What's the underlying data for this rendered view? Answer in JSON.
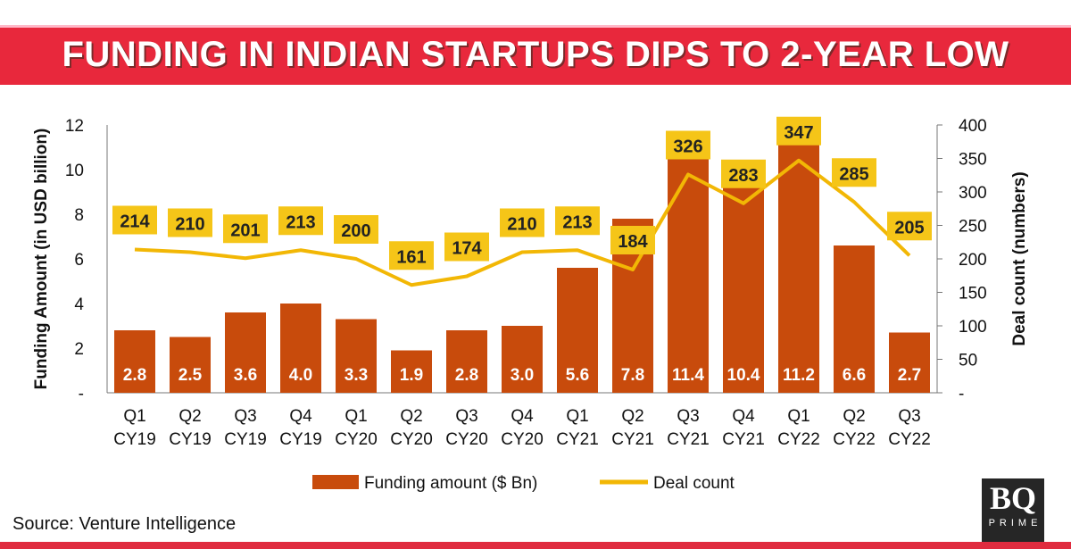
{
  "header": {
    "title": "FUNDING IN INDIAN STARTUPS DIPS TO 2-YEAR LOW"
  },
  "footer": {
    "source": "Source: Venture Intelligence",
    "logo_text": "BQ",
    "logo_subtext": "PRIME"
  },
  "colors": {
    "bar": "#c84b0c",
    "line": "#f2b705",
    "label_box": "#f5c518",
    "banner": "#e8283c"
  },
  "chart_data": {
    "type": "bar+line",
    "title": "FUNDING IN INDIAN STARTUPS DIPS TO 2-YEAR LOW",
    "categories": [
      [
        "Q1",
        "CY19"
      ],
      [
        "Q2",
        "CY19"
      ],
      [
        "Q3",
        "CY19"
      ],
      [
        "Q4",
        "CY19"
      ],
      [
        "Q1",
        "CY20"
      ],
      [
        "Q2",
        "CY20"
      ],
      [
        "Q3",
        "CY20"
      ],
      [
        "Q4",
        "CY20"
      ],
      [
        "Q1",
        "CY21"
      ],
      [
        "Q2",
        "CY21"
      ],
      [
        "Q3",
        "CY21"
      ],
      [
        "Q4",
        "CY21"
      ],
      [
        "Q1",
        "CY22"
      ],
      [
        "Q2",
        "CY22"
      ],
      [
        "Q3",
        "CY22"
      ]
    ],
    "series": [
      {
        "name": "Funding amount ($ Bn)",
        "type": "bar",
        "axis": "left",
        "values": [
          2.8,
          2.5,
          3.6,
          4.0,
          3.3,
          1.9,
          2.8,
          3.0,
          5.6,
          7.8,
          11.4,
          10.4,
          11.2,
          6.6,
          2.7
        ],
        "labels": [
          "2.8",
          "2.5",
          "3.6",
          "4.0",
          "3.3",
          "1.9",
          "2.8",
          "3.0",
          "5.6",
          "7.8",
          "11.4",
          "10.4",
          "11.2",
          "6.6",
          "2.7"
        ]
      },
      {
        "name": "Deal count",
        "type": "line",
        "axis": "right",
        "values": [
          214,
          210,
          201,
          213,
          200,
          161,
          174,
          210,
          213,
          184,
          326,
          283,
          347,
          285,
          205
        ],
        "labels": [
          "214",
          "210",
          "201",
          "213",
          "200",
          "161",
          "174",
          "210",
          "213",
          "184",
          "326",
          "283",
          "347",
          "285",
          "205"
        ]
      }
    ],
    "ylabel": "Funding Amount (in USD billion)",
    "ylabel_right": "Deal count (numbers)",
    "ylim": [
      0,
      12
    ],
    "ylim_right": [
      0,
      400
    ],
    "yticks": [
      "-",
      "2",
      "4",
      "6",
      "8",
      "10",
      "12"
    ],
    "yticks_right": [
      "-",
      "50",
      "100",
      "150",
      "200",
      "250",
      "300",
      "350",
      "400"
    ],
    "legend_position": "bottom",
    "grid": false
  }
}
